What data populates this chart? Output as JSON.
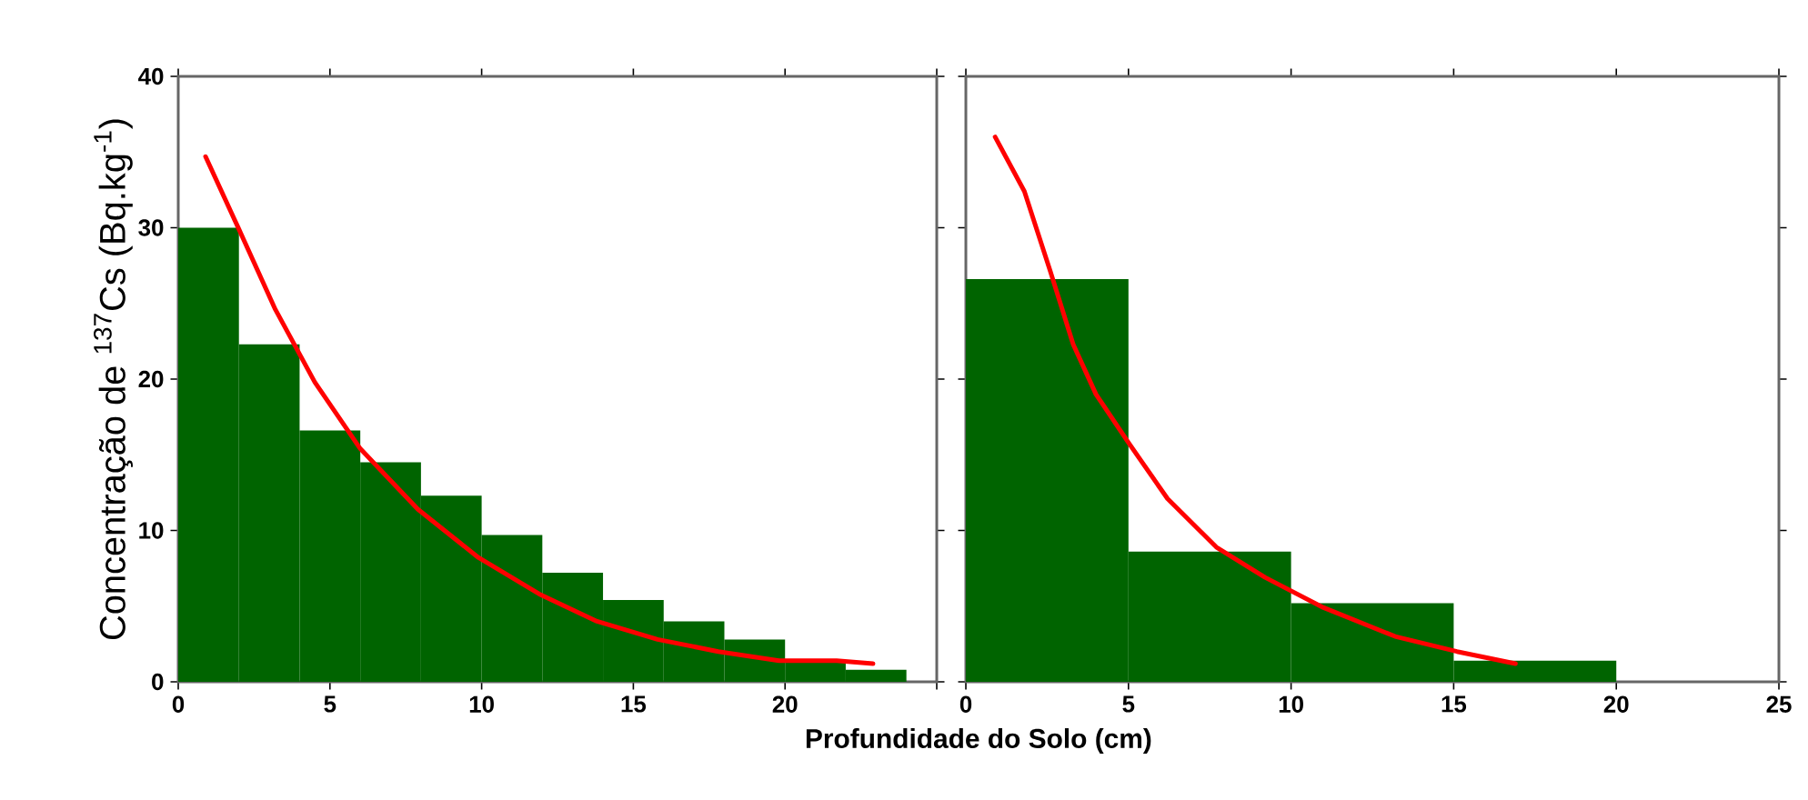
{
  "chart_data": [
    {
      "type": "histogram",
      "ylabel": "Concentração de $^{137}$Cs (Bq.kg$^{-1}$)",
      "xlabel": "Profundidade do Solo (cm)",
      "xlim": [
        0,
        25
      ],
      "xticks": [
        0,
        5,
        10,
        15,
        20,
        {
          "value": 25,
          "label": null
        }
      ],
      "ylim": [
        0,
        40
      ],
      "yticks": [
        0,
        10,
        20,
        30,
        40
      ],
      "series": [
        {
          "color": "#006400",
          "bins": [
            0,
            2,
            4,
            6,
            8,
            10,
            12,
            14,
            16,
            18,
            20,
            22,
            24
          ],
          "values": [
            30,
            22.3,
            16.6,
            14.5,
            12.3,
            9.7,
            7.2,
            5.4,
            4.0,
            2.8,
            1.4,
            0.8
          ]
        },
        {
          "type": "line",
          "color": "#ff0000",
          "x": [
            0.9,
            2,
            3.2,
            4.5,
            6,
            7.9,
            9.9,
            11.9,
            13.8,
            15.8,
            17.8,
            19.8,
            21.7,
            22.9
          ],
          "values": [
            34.7,
            29.9,
            24.6,
            19.8,
            15.4,
            11.4,
            8.2,
            5.8,
            4.0,
            2.8,
            2.0,
            1.4,
            1.4,
            1.2
          ]
        }
      ]
    },
    {
      "type": "histogram",
      "tick_labels": "x",
      "xlim": [
        0,
        25
      ],
      "xticks": [
        0,
        5,
        10,
        15,
        20,
        25
      ],
      "ylim": [
        0,
        40
      ],
      "yticks": [
        0,
        10,
        20,
        30,
        40
      ],
      "series": [
        {
          "color": "#006400",
          "bins": [
            0,
            5,
            10,
            15,
            20
          ],
          "values": [
            26.6,
            8.6,
            5.2,
            1.4
          ]
        },
        {
          "type": "line",
          "color": "#ff0000",
          "x": [
            0.9,
            1.8,
            2.6,
            3.3,
            4.0,
            5.0,
            6.2,
            7.7,
            9.2,
            11.0,
            13.2,
            15.1,
            16.9
          ],
          "values": [
            36.0,
            32.4,
            27.1,
            22.3,
            19.0,
            15.8,
            12.1,
            8.9,
            6.9,
            4.9,
            3.0,
            2.0,
            1.2
          ]
        }
      ]
    }
  ]
}
